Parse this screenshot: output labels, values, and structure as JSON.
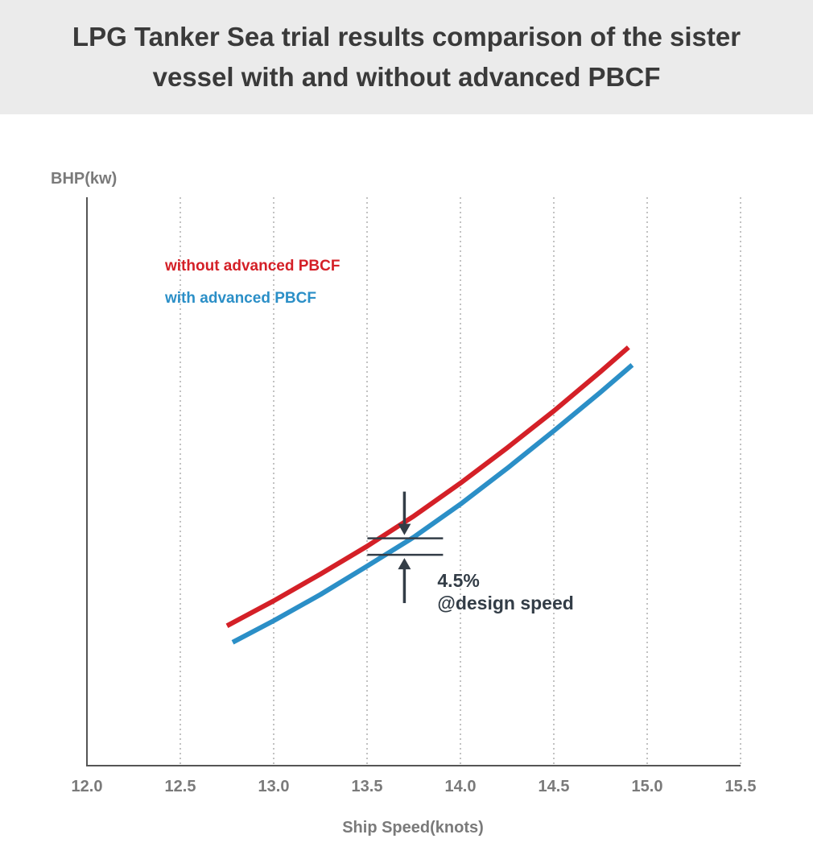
{
  "chart_data": {
    "type": "line",
    "title": "LPG Tanker Sea trial results comparison of the sister vessel with and without advanced PBCF",
    "xlabel": "Ship Speed(knots)",
    "ylabel": "BHP(kw)",
    "xlim": [
      12.0,
      15.5
    ],
    "ylim": [
      0,
      100
    ],
    "x_ticks": [
      "12.0",
      "12.5",
      "13.0",
      "13.5",
      "14.0",
      "14.5",
      "15.0",
      "15.5"
    ],
    "grid": "vertical dotted",
    "legend_placement": "top-left",
    "series": [
      {
        "name": "without advanced PBCF",
        "color": "#d42027",
        "x": [
          12.75,
          13.0,
          13.25,
          13.5,
          13.75,
          14.0,
          14.25,
          14.5,
          14.75,
          14.9
        ],
        "y": [
          24.6,
          29.0,
          33.7,
          38.6,
          43.9,
          49.7,
          55.9,
          62.4,
          69.3,
          73.6
        ]
      },
      {
        "name": "with advanced PBCF",
        "color": "#2b8fc7",
        "x": [
          12.78,
          13.0,
          13.25,
          13.5,
          13.75,
          14.0,
          14.25,
          14.5,
          14.75,
          14.92
        ],
        "y": [
          21.7,
          25.5,
          30.1,
          35.1,
          40.2,
          46.0,
          52.3,
          58.9,
          65.7,
          70.5
        ]
      }
    ],
    "annotation": {
      "x": 13.7,
      "y_top": 40.0,
      "y_bottom": 37.1,
      "line1": "4.5%",
      "line2": "@design speed",
      "color": "#333d47"
    }
  }
}
